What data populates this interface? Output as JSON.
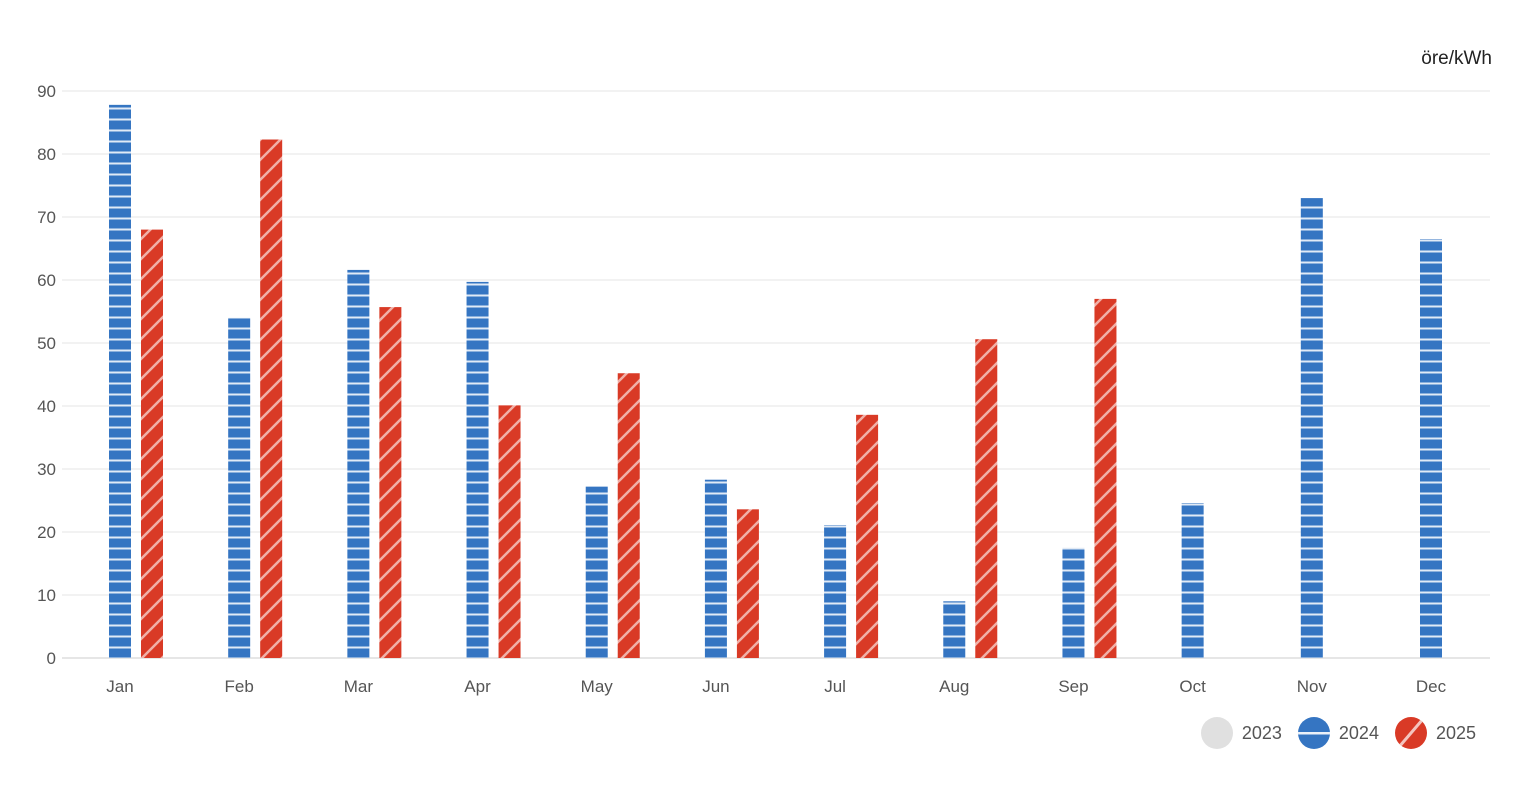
{
  "chart_data": {
    "type": "bar",
    "unit": "öre/kWh",
    "categories": [
      "Jan",
      "Feb",
      "Mar",
      "Apr",
      "May",
      "Jun",
      "Jul",
      "Aug",
      "Sep",
      "Oct",
      "Nov",
      "Dec"
    ],
    "series": [
      {
        "name": "2023",
        "color": "#e0e0e0",
        "pattern": "none",
        "values": [
          null,
          null,
          null,
          null,
          null,
          null,
          null,
          null,
          null,
          null,
          null,
          null
        ]
      },
      {
        "name": "2024",
        "color": "#3575c2",
        "pattern": "horizontal-stripes",
        "values": [
          87.8,
          54,
          61.6,
          59.7,
          27.2,
          28.3,
          21.1,
          9,
          17.5,
          24.6,
          73,
          66.5
        ]
      },
      {
        "name": "2025",
        "color": "#d93a26",
        "pattern": "diagonal-stripes",
        "values": [
          68,
          82.3,
          55.7,
          40.1,
          45.2,
          23.6,
          38.6,
          50.6,
          57,
          null,
          null,
          null
        ]
      }
    ],
    "ylim": [
      0,
      90
    ],
    "yticks": [
      0,
      10,
      20,
      30,
      40,
      50,
      60,
      70,
      80,
      90
    ],
    "grid": true,
    "legend": "bottom-right"
  }
}
